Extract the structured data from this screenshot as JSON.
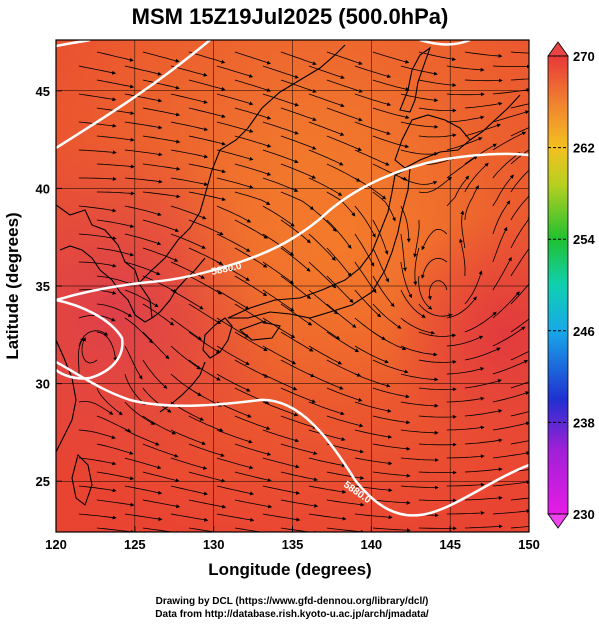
{
  "title": "MSM 15Z19Jul2025 (500.0hPa)",
  "xlabel": "Longitude (degrees)",
  "ylabel": "Latitude  (degrees)",
  "x_ticks": [
    "120",
    "125",
    "130",
    "135",
    "140",
    "145",
    "150"
  ],
  "y_ticks": [
    "25",
    "30",
    "35",
    "40",
    "45"
  ],
  "colorbar": {
    "ticks": [
      "270",
      "262",
      "254",
      "246",
      "238",
      "230"
    ],
    "range": [
      230,
      270
    ]
  },
  "contours": [
    {
      "label": "5880.0"
    },
    {
      "label": "5880.0"
    }
  ],
  "credits": {
    "line1": "Drawing by DCL (https://www.gfd-dennou.org/library/dcl/)",
    "line2": "Data from http://database.rish.kyoto-u.ac.jp/arch/jmadata/"
  },
  "chart_data": {
    "type": "heatmap",
    "title": "MSM 15Z19Jul2025 (500.0hPa)",
    "xlabel": "Longitude (degrees)",
    "ylabel": "Latitude  (degrees)",
    "xlim": [
      120,
      150
    ],
    "ylim": [
      22.4,
      47.6
    ],
    "colorbar_range": [
      230,
      270
    ],
    "colormap": "magenta-blue-cyan-green-yellow-orange-red",
    "grid": true,
    "overlays": [
      "temperature shading",
      "wind streamlines",
      "5880 geopotential contour"
    ]
  }
}
